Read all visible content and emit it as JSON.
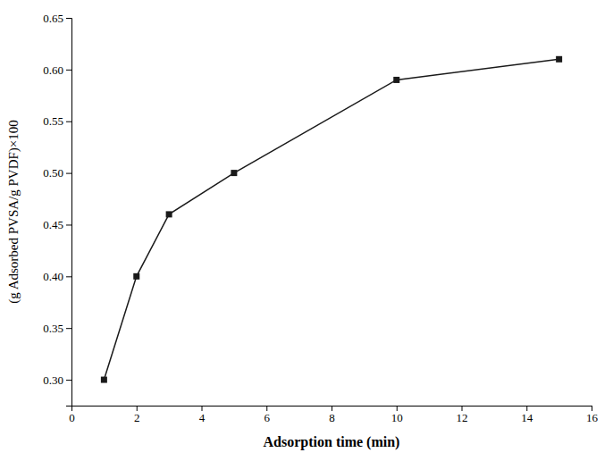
{
  "chart_data": {
    "type": "line",
    "x": [
      1,
      2,
      3,
      5,
      10,
      15
    ],
    "values": [
      0.3,
      0.4,
      0.46,
      0.5,
      0.59,
      0.61
    ],
    "color": "#1a1a1a",
    "marker": "square",
    "line_style": "solid",
    "xlabel": "Adsorption time (min)",
    "ylabel": "(g Adsorbed PVSA/g PVDF)×100",
    "xlim": [
      0,
      16
    ],
    "ylim": [
      0.275,
      0.65
    ],
    "xticks": [
      0,
      2,
      4,
      6,
      8,
      10,
      12,
      14,
      16
    ],
    "yticks": [
      {
        "value": 0.3,
        "label": "0.30"
      },
      0.35,
      {
        "value": 0.4,
        "label": "0.40"
      },
      0.45,
      {
        "value": 0.5,
        "label": "0.50"
      },
      0.55,
      {
        "value": 0.6,
        "label": "0.60"
      },
      0.65
    ],
    "grid": false
  }
}
